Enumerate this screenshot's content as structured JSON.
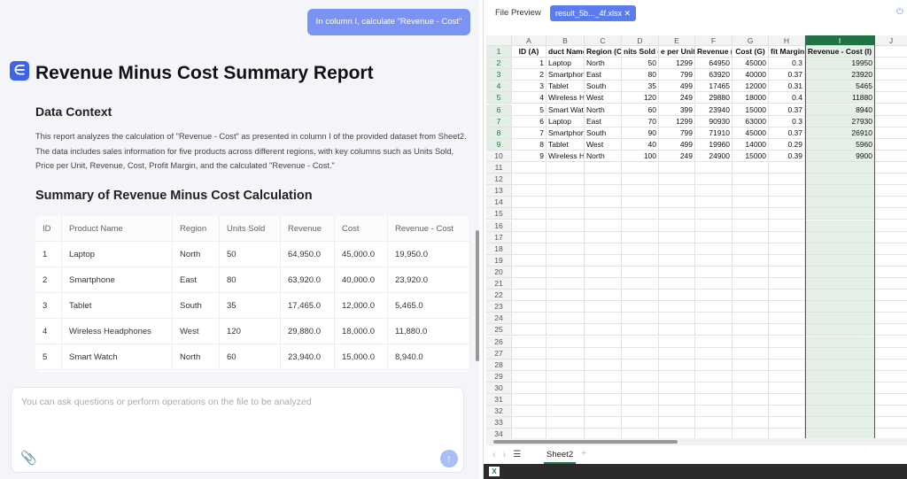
{
  "chat": {
    "user_message": "In column I, calculate \"Revenue - Cost\""
  },
  "report": {
    "title": "Revenue Minus Cost Summary Report",
    "section1_heading": "Data Context",
    "section1_text": "This report analyzes the calculation of \"Revenue - Cost\" as presented in column I of the provided dataset from Sheet2. The data includes sales information for five products across different regions, with key columns such as Units Sold, Price per Unit, Revenue, Cost, Profit Margin, and the calculated \"Revenue - Cost.\"",
    "section2_heading": "Summary of Revenue Minus Cost Calculation",
    "table": {
      "header": [
        "ID",
        "Product Name",
        "Region",
        "Units Sold",
        "Revenue",
        "Cost",
        "Revenue - Cost"
      ],
      "rows": [
        [
          "1",
          "Laptop",
          "North",
          "50",
          "64,950.0",
          "45,000.0",
          "19,950.0"
        ],
        [
          "2",
          "Smartphone",
          "East",
          "80",
          "63,920.0",
          "40,000.0",
          "23,920.0"
        ],
        [
          "3",
          "Tablet",
          "South",
          "35",
          "17,465.0",
          "12,000.0",
          "5,465.0"
        ],
        [
          "4",
          "Wireless Headphones",
          "West",
          "120",
          "29,880.0",
          "18,000.0",
          "11,880.0"
        ],
        [
          "5",
          "Smart Watch",
          "North",
          "60",
          "23,940.0",
          "15,000.0",
          "8,940.0"
        ]
      ]
    }
  },
  "input": {
    "placeholder": "You can ask questions or perform operations on the file to be analyzed"
  },
  "preview": {
    "label": "File Preview",
    "file_tab": "result_5b..._4f.xlsx"
  },
  "sheet": {
    "columns": [
      "A",
      "B",
      "C",
      "D",
      "E",
      "F",
      "G",
      "H",
      "I",
      "J"
    ],
    "header_row": [
      "ID (A)",
      "duct Name",
      "Region (C)",
      "nits Sold (",
      "e per Unit",
      "Revenue (F",
      "Cost (G)",
      "fit Margin",
      "Revenue - Cost (I)"
    ],
    "rows": [
      [
        1,
        "Laptop",
        "North",
        50,
        1299,
        64950,
        45000,
        0.3,
        19950
      ],
      [
        2,
        "Smartphon",
        "East",
        80,
        799,
        63920,
        40000,
        0.37,
        23920
      ],
      [
        3,
        "Tablet",
        "South",
        35,
        499,
        17465,
        12000,
        0.31,
        5465
      ],
      [
        4,
        "Wireless H",
        "West",
        120,
        249,
        29880,
        18000,
        0.4,
        11880
      ],
      [
        5,
        "Smart Wat",
        "North",
        60,
        399,
        23940,
        15000,
        0.37,
        8940
      ],
      [
        6,
        "Laptop",
        "East",
        70,
        1299,
        90930,
        63000,
        0.3,
        27930
      ],
      [
        7,
        "Smartphon",
        "South",
        90,
        799,
        71910,
        45000,
        0.37,
        26910
      ],
      [
        8,
        "Tablet",
        "West",
        40,
        499,
        19960,
        14000,
        0.29,
        5960
      ],
      [
        9,
        "Wireless H",
        "North",
        100,
        249,
        24900,
        15000,
        0.39,
        9900
      ]
    ],
    "row_numbers": [
      1,
      2,
      3,
      4,
      5,
      6,
      7,
      8,
      9,
      10,
      11,
      12,
      13,
      14,
      15,
      16,
      17,
      18,
      19,
      20,
      21,
      22,
      23,
      24,
      25,
      26,
      27,
      28,
      29,
      30,
      31,
      32,
      33,
      34
    ],
    "sheet_tab": "Sheet2"
  }
}
